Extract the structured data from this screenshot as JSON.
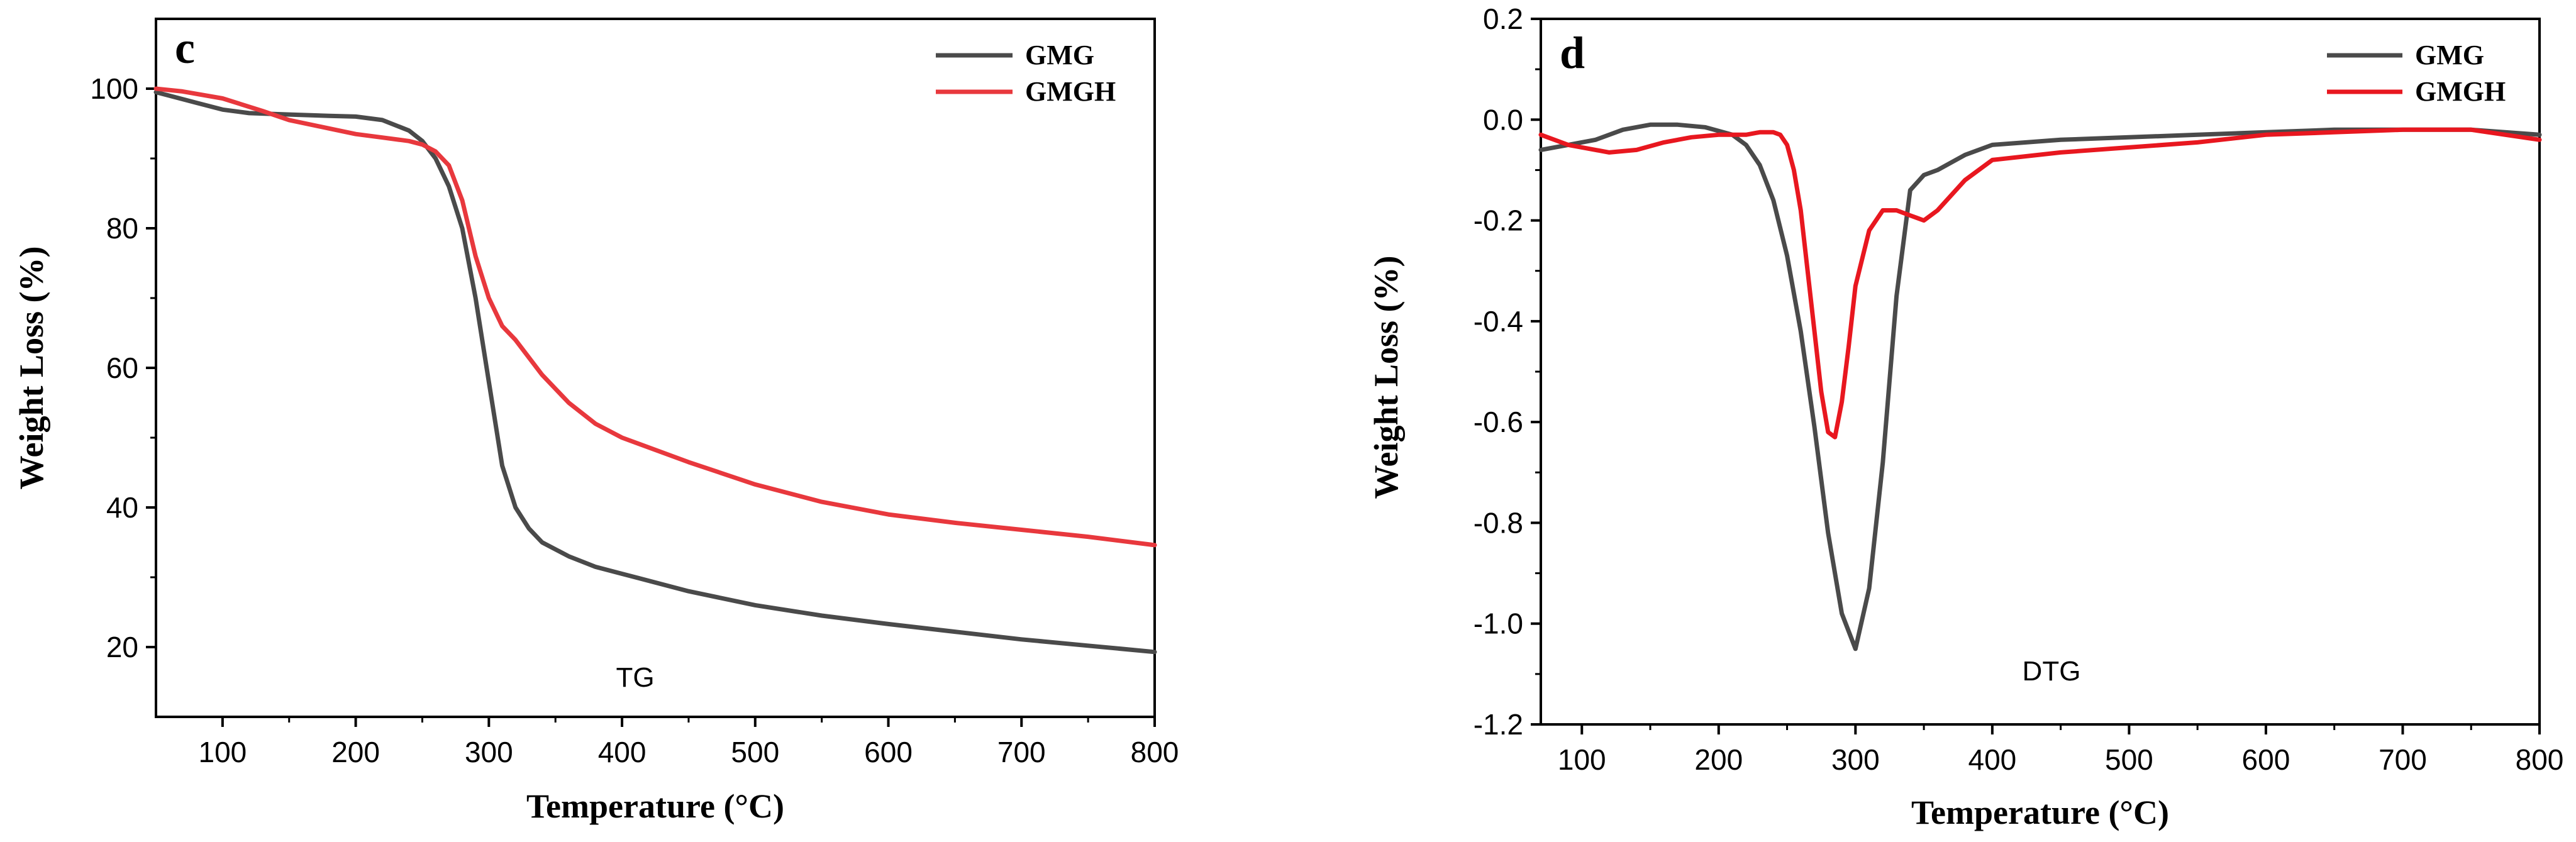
{
  "chart_data": [
    {
      "type": "line",
      "panel": "c",
      "xlabel": "Temperature (°C)",
      "ylabel": "Weight Loss (%)",
      "xlim": [
        50,
        800
      ],
      "ylim": [
        10,
        110
      ],
      "xticks": [
        100,
        200,
        300,
        400,
        500,
        600,
        700,
        800
      ],
      "yticks": [
        20,
        40,
        60,
        80,
        100
      ],
      "annotation": "TG",
      "legend": "top-right",
      "series": [
        {
          "name": "GMG",
          "color": "#4a4a4a",
          "x": [
            50,
            80,
            100,
            120,
            150,
            180,
            200,
            220,
            240,
            250,
            260,
            270,
            280,
            290,
            300,
            310,
            320,
            330,
            340,
            360,
            380,
            400,
            450,
            500,
            550,
            600,
            650,
            700,
            750,
            800
          ],
          "y": [
            99.5,
            98,
            97,
            96.5,
            96.3,
            96.1,
            96,
            95.5,
            94,
            92.5,
            90,
            86,
            80,
            70,
            58,
            46,
            40,
            37,
            35,
            33,
            31.5,
            30.5,
            28,
            26,
            24.5,
            23.3,
            22.2,
            21.1,
            20.2,
            19.3
          ]
        },
        {
          "name": "GMGH",
          "color": "#e8383d",
          "x": [
            50,
            70,
            100,
            130,
            150,
            180,
            200,
            220,
            240,
            250,
            260,
            270,
            280,
            290,
            300,
            310,
            320,
            340,
            360,
            380,
            400,
            450,
            500,
            550,
            600,
            650,
            700,
            750,
            800
          ],
          "y": [
            100,
            99.6,
            98.6,
            96.8,
            95.5,
            94.3,
            93.5,
            93,
            92.5,
            92,
            91,
            89,
            84,
            76,
            70,
            66,
            64,
            59,
            55,
            52,
            50,
            46.5,
            43.3,
            40.8,
            39,
            37.8,
            36.8,
            35.8,
            34.6
          ]
        }
      ]
    },
    {
      "type": "line",
      "panel": "d",
      "xlabel": "Temperature (°C)",
      "ylabel": "Weight Loss (%)",
      "xlim": [
        70,
        800
      ],
      "ylim": [
        -1.2,
        0.2
      ],
      "xticks": [
        100,
        200,
        300,
        400,
        500,
        600,
        700,
        800
      ],
      "yticks": [
        0.2,
        0.0,
        -0.2,
        -0.4,
        -0.6,
        -0.8,
        -1.0,
        -1.2
      ],
      "ytick_labels": [
        "0.2",
        "0.0",
        "-0.2",
        "-0.4",
        "-0.6",
        "-0.8",
        "-1.0",
        "-1.2"
      ],
      "annotation": "DTG",
      "legend": "top-right",
      "series": [
        {
          "name": "GMG",
          "color": "#4a4a4a",
          "x": [
            70,
            90,
            110,
            130,
            150,
            170,
            190,
            210,
            220,
            230,
            240,
            250,
            260,
            270,
            280,
            290,
            300,
            310,
            320,
            330,
            340,
            350,
            360,
            380,
            400,
            450,
            500,
            550,
            600,
            650,
            700,
            750,
            800
          ],
          "y": [
            -0.06,
            -0.05,
            -0.04,
            -0.02,
            -0.01,
            -0.01,
            -0.015,
            -0.03,
            -0.05,
            -0.09,
            -0.16,
            -0.27,
            -0.42,
            -0.61,
            -0.82,
            -0.98,
            -1.05,
            -0.93,
            -0.68,
            -0.35,
            -0.14,
            -0.11,
            -0.1,
            -0.07,
            -0.05,
            -0.04,
            -0.035,
            -0.03,
            -0.025,
            -0.02,
            -0.02,
            -0.02,
            -0.03
          ]
        },
        {
          "name": "GMGH",
          "color": "#e8171f",
          "x": [
            70,
            90,
            110,
            120,
            140,
            160,
            180,
            200,
            220,
            230,
            240,
            245,
            250,
            255,
            260,
            265,
            270,
            275,
            280,
            285,
            290,
            295,
            300,
            310,
            320,
            330,
            340,
            350,
            360,
            380,
            400,
            450,
            500,
            550,
            600,
            650,
            700,
            750,
            800
          ],
          "y": [
            -0.03,
            -0.05,
            -0.06,
            -0.065,
            -0.06,
            -0.045,
            -0.035,
            -0.03,
            -0.03,
            -0.025,
            -0.025,
            -0.03,
            -0.05,
            -0.1,
            -0.18,
            -0.3,
            -0.42,
            -0.54,
            -0.62,
            -0.63,
            -0.56,
            -0.45,
            -0.33,
            -0.22,
            -0.18,
            -0.18,
            -0.19,
            -0.2,
            -0.18,
            -0.12,
            -0.08,
            -0.065,
            -0.055,
            -0.045,
            -0.03,
            -0.025,
            -0.02,
            -0.02,
            -0.04
          ]
        }
      ]
    }
  ]
}
